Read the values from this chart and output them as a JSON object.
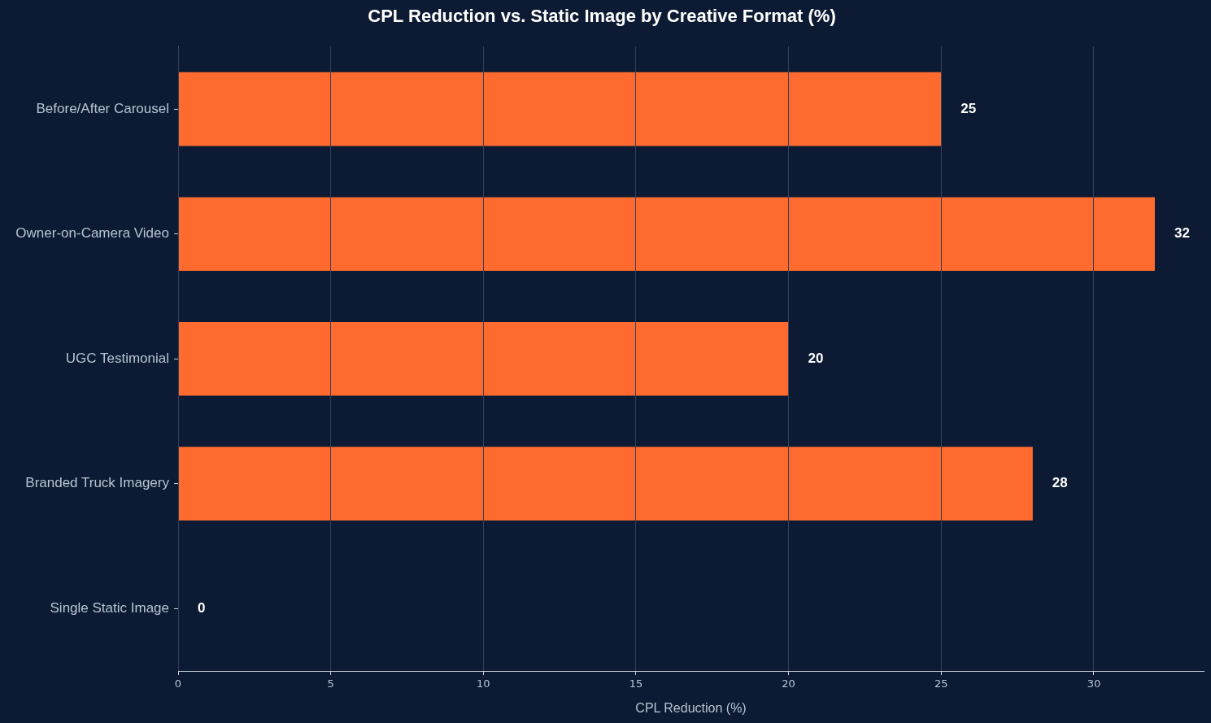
{
  "chart_data": {
    "type": "bar",
    "orientation": "horizontal",
    "title": "CPL Reduction vs. Static Image by Creative Format (%)",
    "xlabel": "CPL Reduction (%)",
    "categories": [
      "Before/After Carousel",
      "Owner-on-Camera Video",
      "UGC Testimonial",
      "Branded Truck Imagery",
      "Single Static Image"
    ],
    "values": [
      25,
      32,
      20,
      28,
      0
    ],
    "color": "#ff6b2f",
    "xlim": [
      0,
      33.6
    ],
    "xticks": [
      0,
      5,
      10,
      15,
      20,
      25,
      30
    ],
    "grid": "x",
    "data_labels": true
  }
}
